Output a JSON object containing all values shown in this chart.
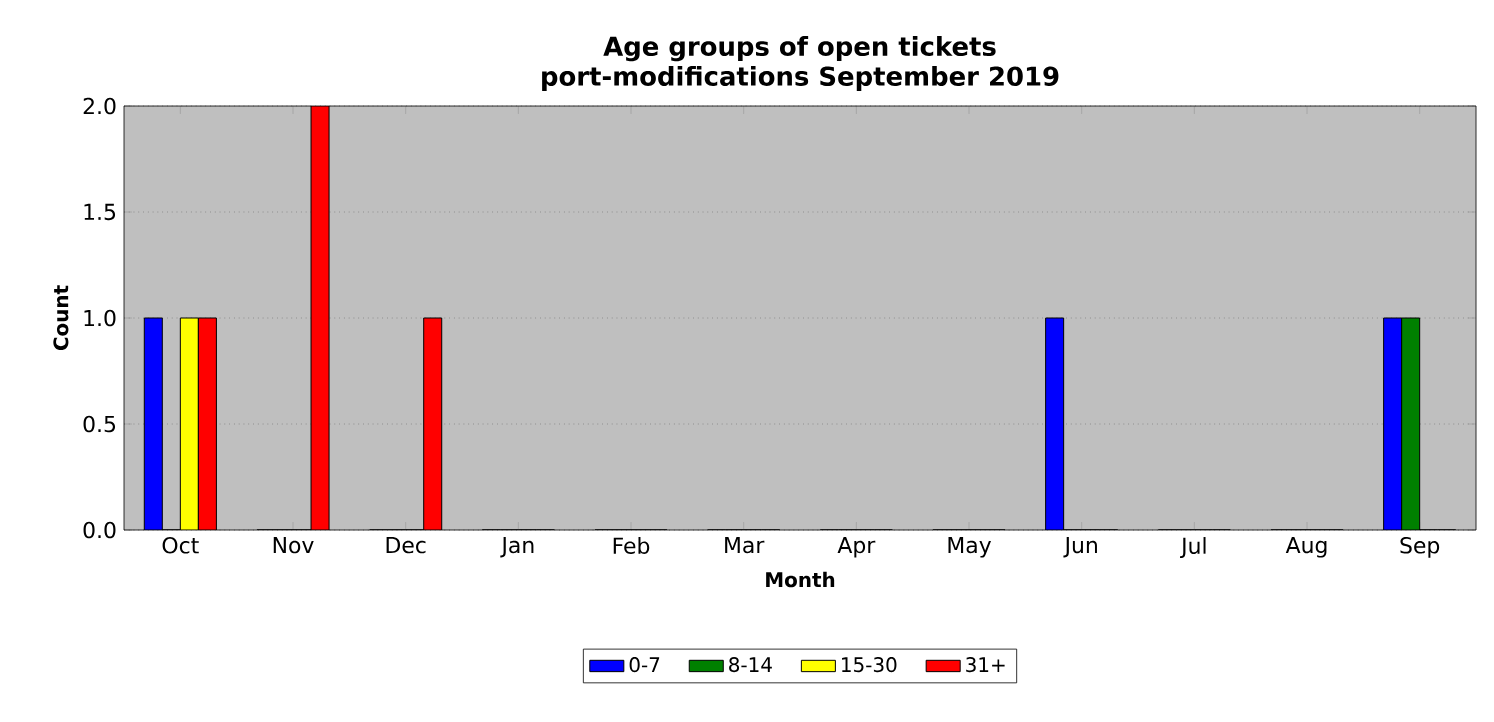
{
  "chart_data": {
    "type": "bar",
    "title": "Age groups of open tickets",
    "subtitle": "port-modifications September 2019",
    "xlabel": "Month",
    "ylabel": "Count",
    "categories": [
      "Oct",
      "Nov",
      "Dec",
      "Jan",
      "Feb",
      "Mar",
      "Apr",
      "May",
      "Jun",
      "Jul",
      "Aug",
      "Sep"
    ],
    "series": [
      {
        "name": "0-7",
        "color": "#0000ff",
        "values": [
          1,
          0,
          0,
          0,
          0,
          0,
          0,
          0,
          1,
          0,
          0,
          1
        ]
      },
      {
        "name": "8-14",
        "color": "#008000",
        "values": [
          0,
          0,
          0,
          0,
          0,
          0,
          0,
          0,
          0,
          0,
          0,
          1
        ]
      },
      {
        "name": "15-30",
        "color": "#ffff00",
        "values": [
          1,
          0,
          0,
          0,
          0,
          0,
          0,
          0,
          0,
          0,
          0,
          0
        ]
      },
      {
        "name": "31+",
        "color": "#ff0000",
        "values": [
          1,
          2,
          1,
          0,
          0,
          0,
          0,
          0,
          0,
          0,
          0,
          0
        ]
      }
    ],
    "ylim": [
      0,
      2
    ],
    "yticks": [
      {
        "value": 0,
        "label": "0.0"
      },
      {
        "value": 0.5,
        "label": "0.5"
      },
      {
        "value": 1,
        "label": "1.0"
      },
      {
        "value": 1.5,
        "label": "1.5"
      },
      {
        "value": 2,
        "label": "2.0"
      }
    ],
    "grid": "y",
    "legend": "bottom"
  }
}
